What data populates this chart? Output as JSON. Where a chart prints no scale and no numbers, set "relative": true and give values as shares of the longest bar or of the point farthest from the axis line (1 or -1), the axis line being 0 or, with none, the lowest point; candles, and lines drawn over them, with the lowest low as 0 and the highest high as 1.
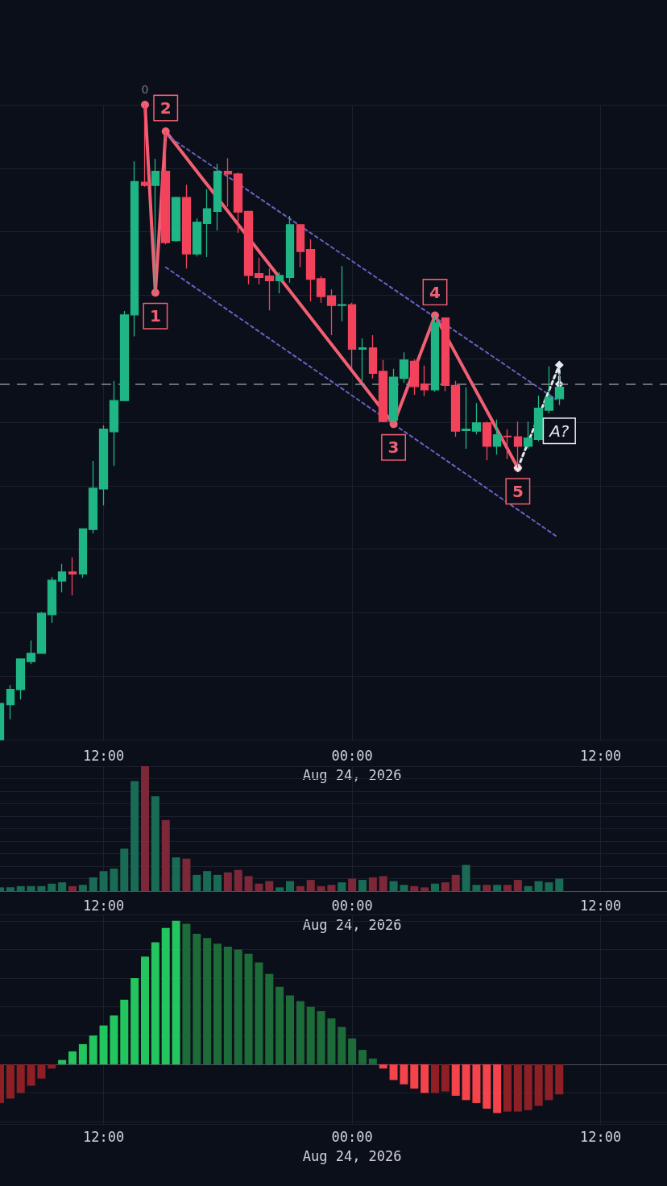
{
  "chart_data": [
    {
      "type": "candlestick",
      "relative": true,
      "x": [
        "2026-08-23T07:00",
        "2026-08-23T07:30",
        "2026-08-23T08:00",
        "2026-08-23T08:30",
        "2026-08-23T09:00",
        "2026-08-23T09:30",
        "2026-08-23T10:00",
        "2026-08-23T10:30",
        "2026-08-23T11:00",
        "2026-08-23T11:30",
        "2026-08-23T12:00",
        "2026-08-23T12:30",
        "2026-08-23T13:00",
        "2026-08-23T13:30",
        "2026-08-23T14:00",
        "2026-08-23T14:30",
        "2026-08-23T15:00",
        "2026-08-23T15:30",
        "2026-08-23T16:00",
        "2026-08-23T16:30",
        "2026-08-23T17:00",
        "2026-08-23T17:30",
        "2026-08-23T18:00",
        "2026-08-23T18:30",
        "2026-08-23T19:00",
        "2026-08-23T19:30",
        "2026-08-23T20:00",
        "2026-08-23T20:30",
        "2026-08-23T21:00",
        "2026-08-23T21:30",
        "2026-08-23T22:00",
        "2026-08-23T22:30",
        "2026-08-23T23:00",
        "2026-08-23T23:30",
        "2026-08-24T00:00",
        "2026-08-24T00:30",
        "2026-08-24T01:00",
        "2026-08-24T01:30",
        "2026-08-24T02:00",
        "2026-08-24T02:30",
        "2026-08-24T03:00",
        "2026-08-24T03:30",
        "2026-08-24T04:00",
        "2026-08-24T04:30",
        "2026-08-24T05:00",
        "2026-08-24T05:30",
        "2026-08-24T06:00",
        "2026-08-24T06:30",
        "2026-08-24T07:00",
        "2026-08-24T07:30",
        "2026-08-24T08:00",
        "2026-08-24T08:30",
        "2026-08-24T09:00",
        "2026-08-24T09:30",
        "2026-08-24T10:00"
      ],
      "ohlc": [
        [
          0,
          0.057,
          0,
          0.057
        ],
        [
          0.055,
          0.086,
          0.032,
          0.079
        ],
        [
          0.079,
          0.128,
          0.063,
          0.127
        ],
        [
          0.123,
          0.156,
          0.119,
          0.136
        ],
        [
          0.136,
          0.201,
          0.135,
          0.199
        ],
        [
          0.197,
          0.256,
          0.184,
          0.251
        ],
        [
          0.25,
          0.277,
          0.232,
          0.264
        ],
        [
          0.264,
          0.287,
          0.227,
          0.261
        ],
        [
          0.261,
          0.332,
          0.255,
          0.332
        ],
        [
          0.331,
          0.439,
          0.325,
          0.396
        ],
        [
          0.395,
          0.495,
          0.369,
          0.489
        ],
        [
          0.485,
          0.565,
          0.431,
          0.534
        ],
        [
          0.534,
          0.675,
          0.534,
          0.669
        ],
        [
          0.669,
          0.911,
          0.635,
          0.879
        ],
        [
          0.878,
          1,
          0.871,
          0.873
        ],
        [
          0.873,
          0.915,
          0.704,
          0.895
        ],
        [
          0.895,
          0.958,
          0.78,
          0.783
        ],
        [
          0.786,
          0.855,
          0.784,
          0.854
        ],
        [
          0.854,
          0.874,
          0.742,
          0.765
        ],
        [
          0.765,
          0.821,
          0.761,
          0.815
        ],
        [
          0.813,
          0.867,
          0.76,
          0.836
        ],
        [
          0.832,
          0.907,
          0.802,
          0.895
        ],
        [
          0.895,
          0.916,
          0.839,
          0.891
        ],
        [
          0.891,
          0.893,
          0.798,
          0.831
        ],
        [
          0.832,
          0.832,
          0.717,
          0.731
        ],
        [
          0.734,
          0.759,
          0.717,
          0.728
        ],
        [
          0.73,
          0.742,
          0.676,
          0.723
        ],
        [
          0.723,
          0.736,
          0.703,
          0.731
        ],
        [
          0.728,
          0.825,
          0.72,
          0.811
        ],
        [
          0.811,
          0.811,
          0.744,
          0.769
        ],
        [
          0.772,
          0.788,
          0.69,
          0.725
        ],
        [
          0.726,
          0.73,
          0.688,
          0.698
        ],
        [
          0.699,
          0.709,
          0.637,
          0.684
        ],
        [
          0.684,
          0.746,
          0.659,
          0.685
        ],
        [
          0.685,
          0.688,
          0.585,
          0.615
        ],
        [
          0.615,
          0.632,
          0.565,
          0.617
        ],
        [
          0.617,
          0.637,
          0.569,
          0.577
        ],
        [
          0.58,
          0.598,
          0.5,
          0.501
        ],
        [
          0.503,
          0.584,
          0.497,
          0.571
        ],
        [
          0.569,
          0.61,
          0.562,
          0.598
        ],
        [
          0.596,
          0.599,
          0.543,
          0.556
        ],
        [
          0.56,
          0.589,
          0.541,
          0.551
        ],
        [
          0.551,
          0.668,
          0.548,
          0.657
        ],
        [
          0.664,
          0.664,
          0.549,
          0.558
        ],
        [
          0.558,
          0.565,
          0.477,
          0.486
        ],
        [
          0.487,
          0.555,
          0.458,
          0.489
        ],
        [
          0.486,
          0.53,
          0.481,
          0.499
        ],
        [
          0.499,
          0.501,
          0.44,
          0.462
        ],
        [
          0.462,
          0.504,
          0.449,
          0.48
        ],
        [
          0.478,
          0.489,
          0.442,
          0.477
        ],
        [
          0.477,
          0.501,
          0.428,
          0.462
        ],
        [
          0.462,
          0.501,
          0.458,
          0.475
        ],
        [
          0.473,
          0.542,
          0.47,
          0.522
        ],
        [
          0.519,
          0.588,
          0.514,
          0.539
        ],
        [
          0.537,
          0.577,
          0.527,
          0.555
        ]
      ],
      "colors": [
        "#1fb585",
        "#1fb585",
        "#1fb585",
        "#1fb585",
        "#1fb585",
        "#1fb585",
        "#1fb585",
        "#f2425c",
        "#1fb585",
        "#1fb585",
        "#1fb585",
        "#1fb585",
        "#1fb585",
        "#1fb585",
        "#f2425c",
        "#1fb585",
        "#f2425c",
        "#1fb585",
        "#f2425c",
        "#1fb585",
        "#1fb585",
        "#1fb585",
        "#f2425c",
        "#f2425c",
        "#f2425c",
        "#f2425c",
        "#f2425c",
        "#1fb585",
        "#1fb585",
        "#f2425c",
        "#f2425c",
        "#f2425c",
        "#f2425c",
        "#1fb585",
        "#f2425c",
        "#1fb585",
        "#f2425c",
        "#f2425c",
        "#1fb585",
        "#1fb585",
        "#f2425c",
        "#f2425c",
        "#1fb585",
        "#f2425c",
        "#f2425c",
        "#1fb585",
        "#1fb585",
        "#f2425c",
        "#1fb585",
        "#f2425c",
        "#f2425c",
        "#1fb585",
        "#1fb585",
        "#1fb585",
        "#1fb585"
      ],
      "series": [
        {
          "type": "line",
          "x": [
            "2026-08-23T14:00",
            "2026-08-23T14:30",
            "2026-08-23T15:00",
            "2026-08-24T02:00",
            "2026-08-24T04:00",
            "2026-08-24T08:00"
          ],
          "values": [
            1,
            0.704,
            0.958,
            0.497,
            0.668,
            0.428
          ],
          "color": "#f25f73",
          "marker": "circle",
          "line_style": "solid"
        },
        {
          "type": "line",
          "x": [
            "2026-08-23T15:00",
            "2026-08-24T09:50"
          ],
          "values": [
            0.953,
            0.536
          ],
          "color": "#6b60c4",
          "marker": "none",
          "line_style": "dotted"
        },
        {
          "type": "line",
          "x": [
            "2026-08-23T15:00",
            "2026-08-24T09:50"
          ],
          "values": [
            0.744,
            0.321
          ],
          "color": "#6b60c4",
          "marker": "none",
          "line_style": "dotted"
        },
        {
          "type": "line",
          "x": [
            "2026-08-24T08:00",
            "2026-08-24T10:00",
            "2026-08-24T10:00"
          ],
          "values": [
            0.428,
            0.59,
            0.56
          ],
          "color": "#e6e8ee",
          "marker": "diamond",
          "line_style": "dotted"
        }
      ],
      "ref_lines": [
        {
          "axis": "y",
          "value": 0.56,
          "color": "#8a8d96",
          "line_style": "dashed"
        }
      ],
      "annotations": [
        {
          "text": "0",
          "x": "2026-08-23T14:00",
          "y": 1
        },
        {
          "text": "1",
          "x": "2026-08-23T14:30",
          "y": 0.704
        },
        {
          "text": "2",
          "x": "2026-08-23T15:00",
          "y": 0.958
        },
        {
          "text": "3",
          "x": "2026-08-24T02:00",
          "y": 0.497
        },
        {
          "text": "4",
          "x": "2026-08-24T04:00",
          "y": 0.668
        },
        {
          "text": "5",
          "x": "2026-08-24T08:00",
          "y": 0.428
        },
        {
          "text": "A?",
          "x": "2026-08-24T10:00",
          "y": 0.56
        }
      ],
      "xlim": [
        "2026-08-23T07:00",
        "2026-08-24T15:12"
      ],
      "xticks": [
        {
          "value": "2026-08-23T12:00",
          "label": "12:00"
        },
        {
          "value": "2026-08-24T00:00",
          "label": "00:00\nAug 24, 2026"
        },
        {
          "value": "2026-08-24T12:00",
          "label": "12:00"
        }
      ],
      "grid": true
    },
    {
      "type": "bar",
      "relative": true,
      "x": [
        "2026-08-23T07:00",
        "2026-08-23T07:30",
        "2026-08-23T08:00",
        "2026-08-23T08:30",
        "2026-08-23T09:00",
        "2026-08-23T09:30",
        "2026-08-23T10:00",
        "2026-08-23T10:30",
        "2026-08-23T11:00",
        "2026-08-23T11:30",
        "2026-08-23T12:00",
        "2026-08-23T12:30",
        "2026-08-23T13:00",
        "2026-08-23T13:30",
        "2026-08-23T14:00",
        "2026-08-23T14:30",
        "2026-08-23T15:00",
        "2026-08-23T15:30",
        "2026-08-23T16:00",
        "2026-08-23T16:30",
        "2026-08-23T17:00",
        "2026-08-23T17:30",
        "2026-08-23T18:00",
        "2026-08-23T18:30",
        "2026-08-23T19:00",
        "2026-08-23T19:30",
        "2026-08-23T20:00",
        "2026-08-23T20:30",
        "2026-08-23T21:00",
        "2026-08-23T21:30",
        "2026-08-23T22:00",
        "2026-08-23T22:30",
        "2026-08-23T23:00",
        "2026-08-23T23:30",
        "2026-08-24T00:00",
        "2026-08-24T00:30",
        "2026-08-24T01:00",
        "2026-08-24T01:30",
        "2026-08-24T02:00",
        "2026-08-24T02:30",
        "2026-08-24T03:00",
        "2026-08-24T03:30",
        "2026-08-24T04:00",
        "2026-08-24T04:30",
        "2026-08-24T05:00",
        "2026-08-24T05:30",
        "2026-08-24T06:00",
        "2026-08-24T06:30",
        "2026-08-24T07:00",
        "2026-08-24T07:30",
        "2026-08-24T08:00",
        "2026-08-24T08:30",
        "2026-08-24T09:00",
        "2026-08-24T09:30",
        "2026-08-24T10:00"
      ],
      "values": [
        0.03,
        0.03,
        0.04,
        0.04,
        0.04,
        0.06,
        0.07,
        0.04,
        0.05,
        0.11,
        0.16,
        0.18,
        0.34,
        0.88,
        1,
        0.76,
        0.57,
        0.27,
        0.26,
        0.13,
        0.16,
        0.13,
        0.15,
        0.17,
        0.12,
        0.06,
        0.08,
        0.03,
        0.08,
        0.04,
        0.09,
        0.04,
        0.05,
        0.07,
        0.1,
        0.09,
        0.11,
        0.12,
        0.08,
        0.05,
        0.04,
        0.03,
        0.06,
        0.07,
        0.13,
        0.21,
        0.05,
        0.05,
        0.05,
        0.05,
        0.09,
        0.04,
        0.08,
        0.07,
        0.1
      ],
      "colors": [
        "#1a6b56",
        "#1a6b56",
        "#1a6b56",
        "#1a6b56",
        "#1a6b56",
        "#1a6b56",
        "#1a6b56",
        "#7c2838",
        "#1a6b56",
        "#1a6b56",
        "#1a6b56",
        "#1a6b56",
        "#1a6b56",
        "#1a6b56",
        "#7c2838",
        "#1a6b56",
        "#7c2838",
        "#1a6b56",
        "#7c2838",
        "#1a6b56",
        "#1a6b56",
        "#1a6b56",
        "#7c2838",
        "#7c2838",
        "#7c2838",
        "#7c2838",
        "#7c2838",
        "#1a6b56",
        "#1a6b56",
        "#7c2838",
        "#7c2838",
        "#7c2838",
        "#7c2838",
        "#1a6b56",
        "#7c2838",
        "#1a6b56",
        "#7c2838",
        "#7c2838",
        "#1a6b56",
        "#1a6b56",
        "#7c2838",
        "#7c2838",
        "#1a6b56",
        "#7c2838",
        "#7c2838",
        "#1a6b56",
        "#1a6b56",
        "#7c2838",
        "#1a6b56",
        "#7c2838",
        "#7c2838",
        "#1a6b56",
        "#1a6b56",
        "#1a6b56",
        "#1a6b56"
      ],
      "xlim": [
        "2026-08-23T07:00",
        "2026-08-24T15:12"
      ],
      "xticks": [
        {
          "value": "2026-08-23T12:00",
          "label": "12:00"
        },
        {
          "value": "2026-08-24T00:00",
          "label": "00:00\nAug 24, 2026"
        },
        {
          "value": "2026-08-24T12:00",
          "label": "12:00"
        }
      ],
      "grid": true
    },
    {
      "type": "bar",
      "relative": true,
      "x": [
        "2026-08-23T07:00",
        "2026-08-23T07:30",
        "2026-08-23T08:00",
        "2026-08-23T08:30",
        "2026-08-23T09:00",
        "2026-08-23T09:30",
        "2026-08-23T10:00",
        "2026-08-23T10:30",
        "2026-08-23T11:00",
        "2026-08-23T11:30",
        "2026-08-23T12:00",
        "2026-08-23T12:30",
        "2026-08-23T13:00",
        "2026-08-23T13:30",
        "2026-08-23T14:00",
        "2026-08-23T14:30",
        "2026-08-23T15:00",
        "2026-08-23T15:30",
        "2026-08-23T16:00",
        "2026-08-23T16:30",
        "2026-08-23T17:00",
        "2026-08-23T17:30",
        "2026-08-23T18:00",
        "2026-08-23T18:30",
        "2026-08-23T19:00",
        "2026-08-23T19:30",
        "2026-08-23T20:00",
        "2026-08-23T20:30",
        "2026-08-23T21:00",
        "2026-08-23T21:30",
        "2026-08-23T22:00",
        "2026-08-23T22:30",
        "2026-08-23T23:00",
        "2026-08-23T23:30",
        "2026-08-24T00:00",
        "2026-08-24T00:30",
        "2026-08-24T01:00",
        "2026-08-24T01:30",
        "2026-08-24T02:00",
        "2026-08-24T02:30",
        "2026-08-24T03:00",
        "2026-08-24T03:30",
        "2026-08-24T04:00",
        "2026-08-24T04:30",
        "2026-08-24T05:00",
        "2026-08-24T05:30",
        "2026-08-24T06:00",
        "2026-08-24T06:30",
        "2026-08-24T07:00",
        "2026-08-24T07:30",
        "2026-08-24T08:00",
        "2026-08-24T08:30",
        "2026-08-24T09:00",
        "2026-08-24T09:30",
        "2026-08-24T10:00"
      ],
      "values": [
        -0.27,
        -0.24,
        -0.2,
        -0.15,
        -0.1,
        -0.03,
        0.03,
        0.09,
        0.14,
        0.2,
        0.27,
        0.34,
        0.45,
        0.6,
        0.75,
        0.85,
        0.95,
        1,
        0.98,
        0.91,
        0.88,
        0.84,
        0.82,
        0.8,
        0.77,
        0.71,
        0.63,
        0.54,
        0.48,
        0.44,
        0.4,
        0.37,
        0.32,
        0.26,
        0.18,
        0.1,
        0.04,
        -0.03,
        -0.11,
        -0.14,
        -0.17,
        -0.2,
        -0.2,
        -0.19,
        -0.22,
        -0.25,
        -0.27,
        -0.31,
        -0.34,
        -0.33,
        -0.33,
        -0.32,
        -0.29,
        -0.25,
        -0.21
      ],
      "colors": [
        "#8e1f25",
        "#8e1f25",
        "#8e1f25",
        "#8e1f25",
        "#8e1f25",
        "#8e1f25",
        "#22c55e",
        "#22c55e",
        "#22c55e",
        "#22c55e",
        "#22c55e",
        "#22c55e",
        "#22c55e",
        "#22c55e",
        "#22c55e",
        "#22c55e",
        "#22c55e",
        "#22c55e",
        "#1c6b38",
        "#1c6b38",
        "#1c6b38",
        "#1c6b38",
        "#1c6b38",
        "#1c6b38",
        "#1c6b38",
        "#1c6b38",
        "#1c6b38",
        "#1c6b38",
        "#1c6b38",
        "#1c6b38",
        "#1c6b38",
        "#1c6b38",
        "#1c6b38",
        "#1c6b38",
        "#1c6b38",
        "#1c6b38",
        "#1c6b38",
        "#f4434a",
        "#f4434a",
        "#f4434a",
        "#f4434a",
        "#f4434a",
        "#8e1f25",
        "#8e1f25",
        "#f4434a",
        "#f4434a",
        "#f4434a",
        "#f4434a",
        "#f4434a",
        "#8e1f25",
        "#8e1f25",
        "#8e1f25",
        "#8e1f25",
        "#8e1f25",
        "#8e1f25"
      ],
      "xlim": [
        "2026-08-23T07:00",
        "2026-08-24T15:12"
      ],
      "xticks": [
        {
          "value": "2026-08-23T12:00",
          "label": "12:00"
        },
        {
          "value": "2026-08-24T00:00",
          "label": "00:00\nAug 24, 2026"
        },
        {
          "value": "2026-08-24T12:00",
          "label": "12:00"
        }
      ],
      "grid": true
    }
  ]
}
